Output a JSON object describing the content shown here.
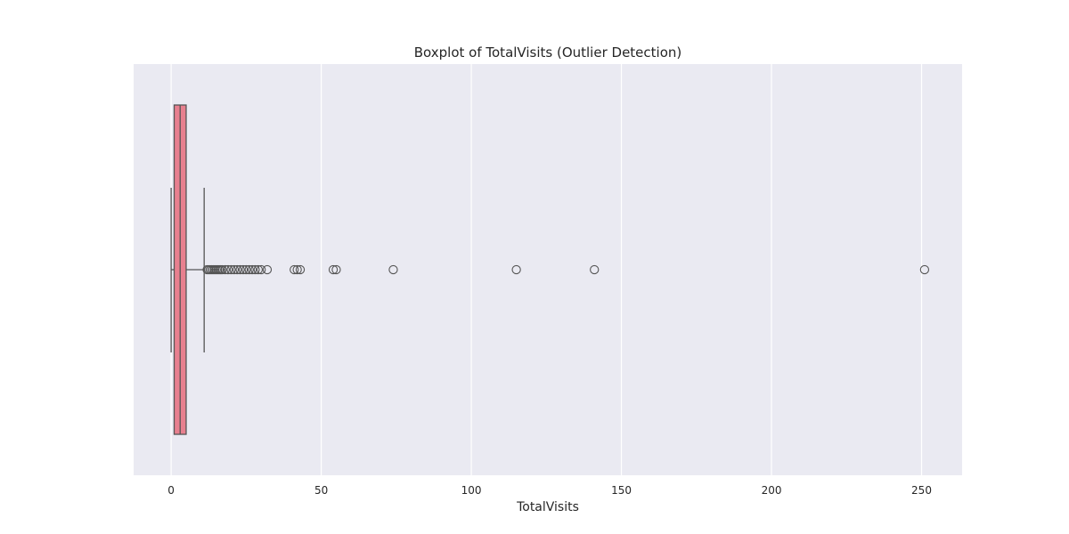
{
  "chart_data": {
    "type": "box",
    "orientation": "horizontal",
    "title": "Boxplot of TotalVisits (Outlier Detection)",
    "xlabel": "TotalVisits",
    "ylabel": "",
    "xlim": [
      -12.5,
      263.5
    ],
    "xticks": [
      0,
      50,
      100,
      150,
      200,
      250
    ],
    "grid": true,
    "colors": {
      "box_fill": "#e8808f",
      "box_edge": "#555555",
      "outlier_edge": "#555555",
      "background": "#eaeaf2",
      "grid": "#ffffff"
    },
    "series": [
      {
        "min": 0,
        "q1": 1,
        "median": 3,
        "q3": 5,
        "max": 11,
        "outliers": [
          12,
          12.5,
          13,
          13.5,
          14,
          14.5,
          15,
          15.5,
          16,
          16.5,
          17,
          18,
          19,
          20,
          21,
          22,
          23,
          24,
          25,
          26,
          27,
          28,
          29,
          30,
          32,
          41,
          42,
          43,
          54,
          55,
          74,
          115,
          141,
          251
        ]
      }
    ]
  }
}
